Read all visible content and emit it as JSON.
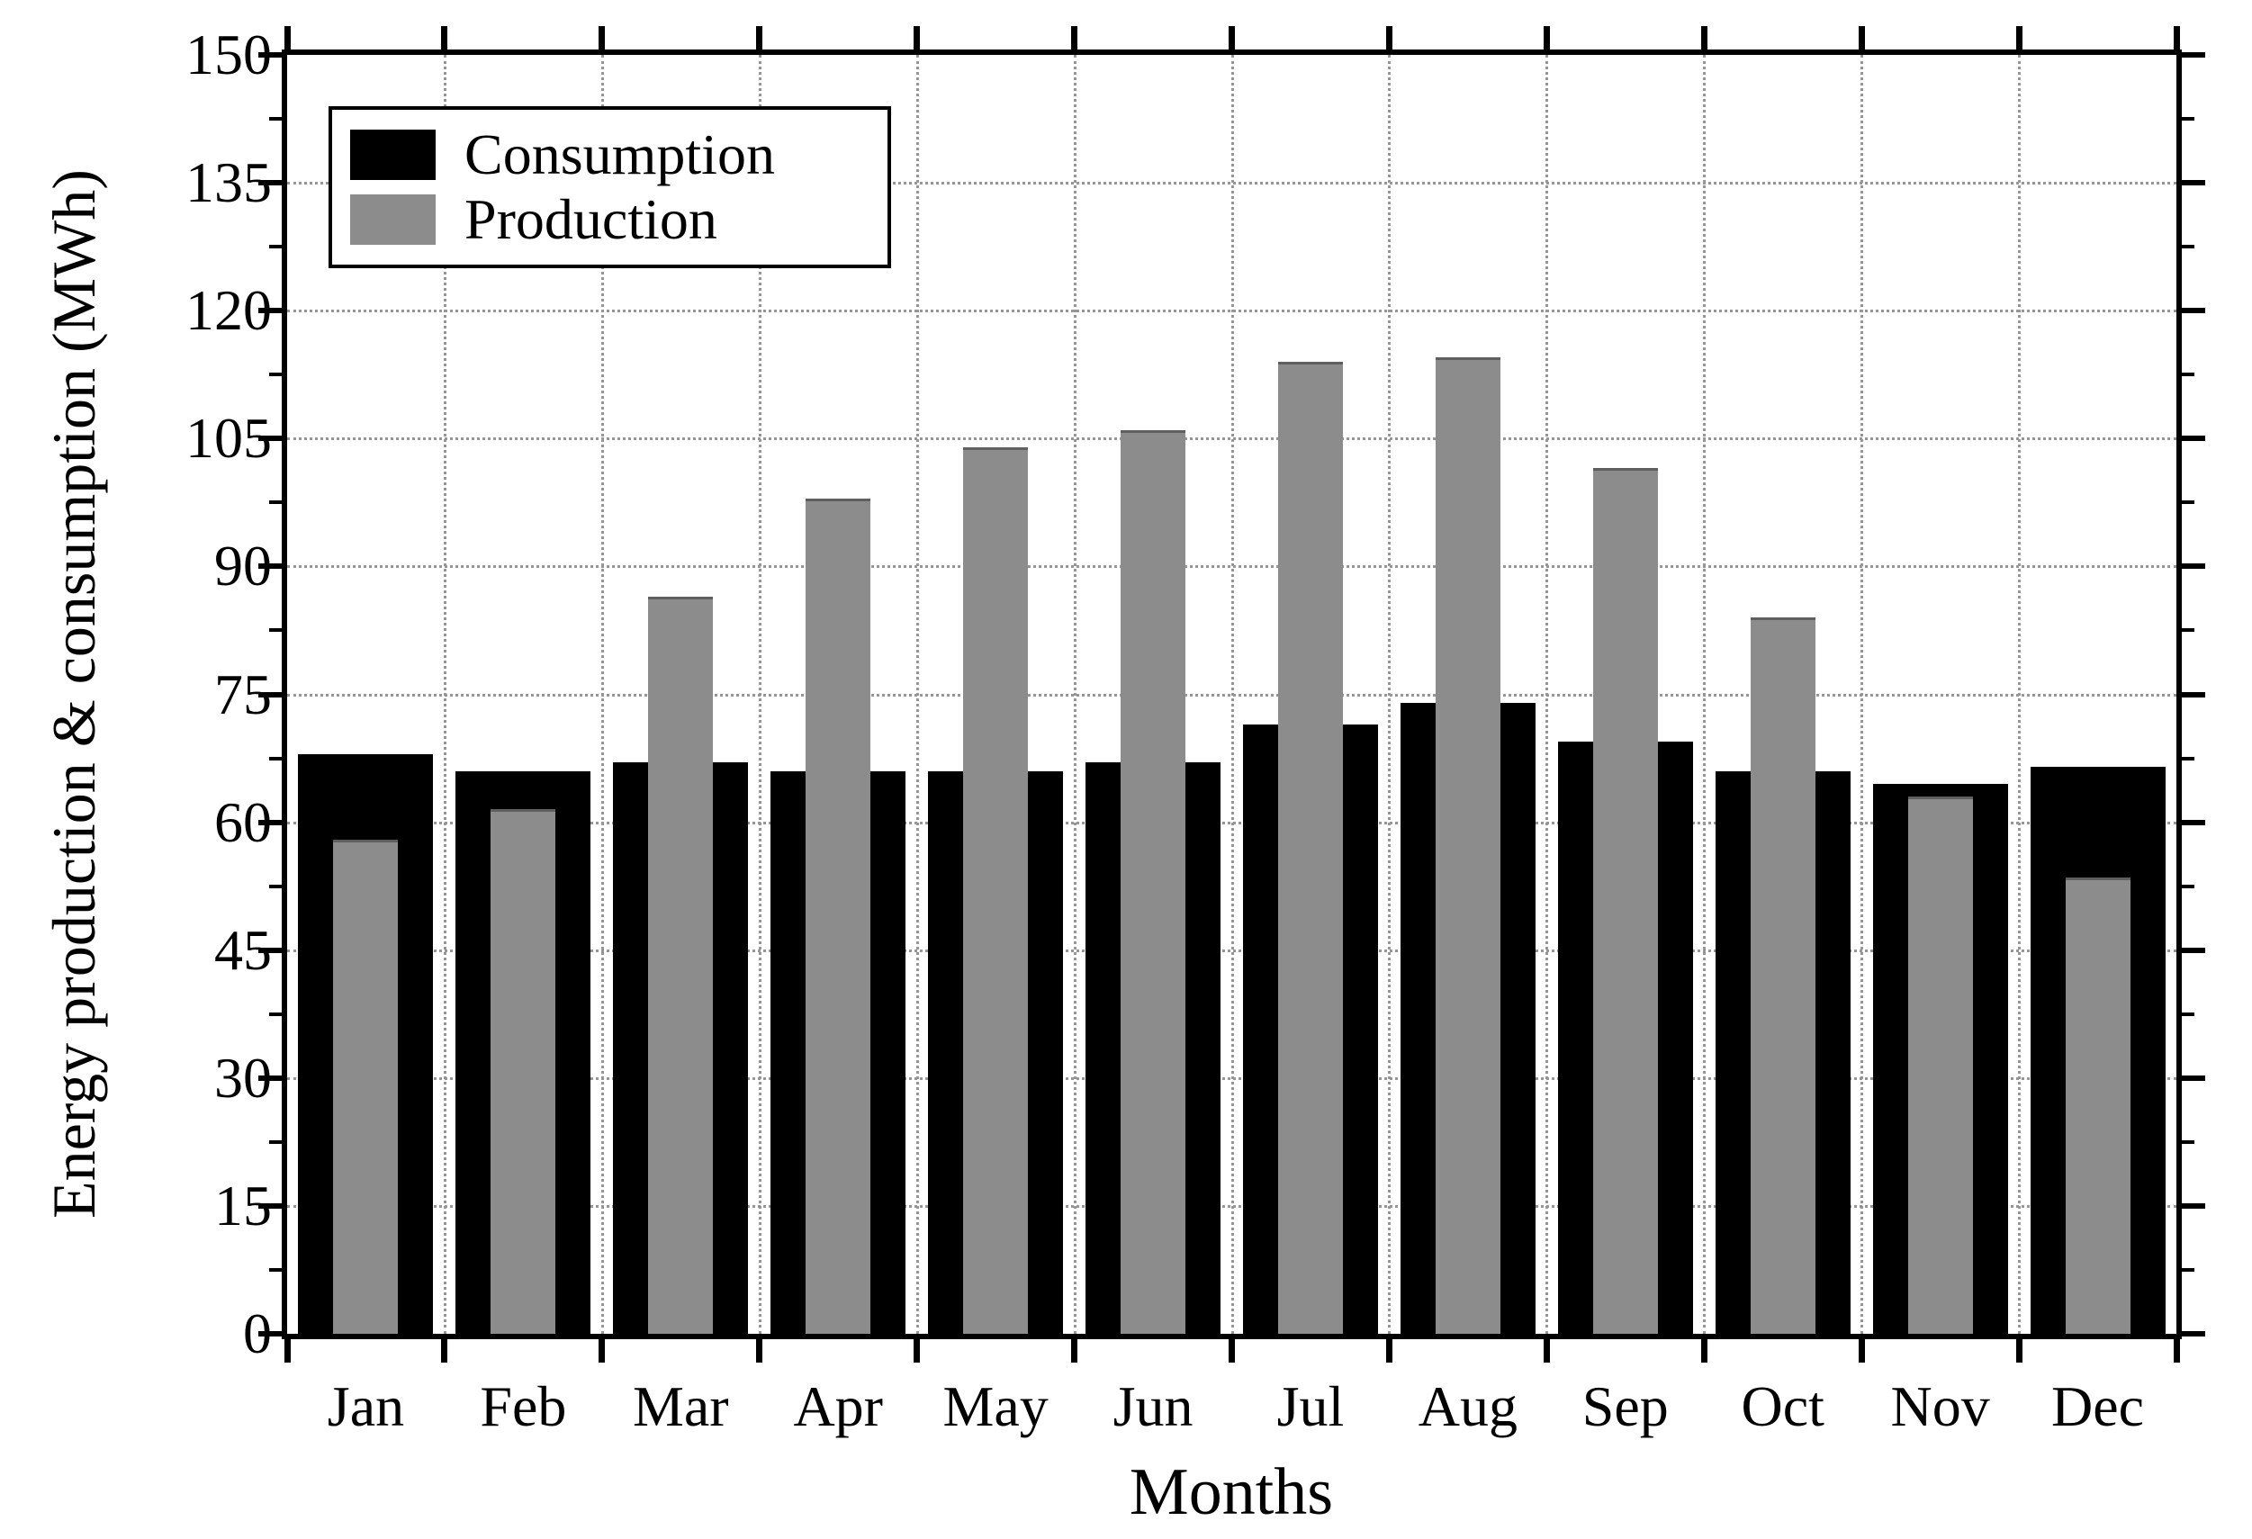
{
  "chart_data": {
    "type": "bar",
    "title": "",
    "xlabel": "Months",
    "ylabel": "Energy production & consumption (MWh)",
    "categories": [
      "Jan",
      "Feb",
      "Mar",
      "Apr",
      "May",
      "Jun",
      "Jul",
      "Aug",
      "Sep",
      "Oct",
      "Nov",
      "Dec"
    ],
    "series": [
      {
        "name": "Consumption",
        "color": "#000000",
        "values": [
          68,
          66,
          67,
          66,
          66,
          67,
          71.5,
          74,
          69.5,
          66,
          64.5,
          66.5
        ]
      },
      {
        "name": "Production",
        "color": "#8c8c8c",
        "values": [
          58,
          61.5,
          86.5,
          98,
          104,
          106,
          114,
          114.5,
          101.5,
          84,
          63,
          53.5
        ]
      }
    ],
    "ylim": [
      0,
      150
    ],
    "yticks": [
      0,
      15,
      30,
      45,
      60,
      75,
      90,
      105,
      120,
      135,
      150
    ],
    "minor_tick_step": 7.5,
    "grid": "dotted horizontal at major yticks and vertical at month boundaries, drawn beneath bars",
    "legend_position": "upper-left"
  },
  "colors": {
    "consumption": "#000000",
    "production": "#8c8c8c",
    "gridline": "#969696",
    "axis": "#000000",
    "background": "#ffffff"
  }
}
